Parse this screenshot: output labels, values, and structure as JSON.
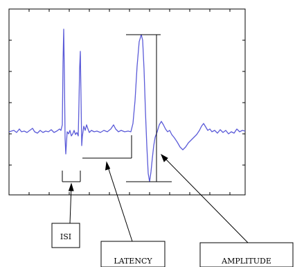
{
  "labels": {
    "isi": "ISI",
    "latency": "LATENCY",
    "amplitude": "AMPLITUDE"
  },
  "colors": {
    "trace": "#5a5ad8",
    "frame": "#000000",
    "annotation": "#000000",
    "background": "#ffffff"
  }
}
